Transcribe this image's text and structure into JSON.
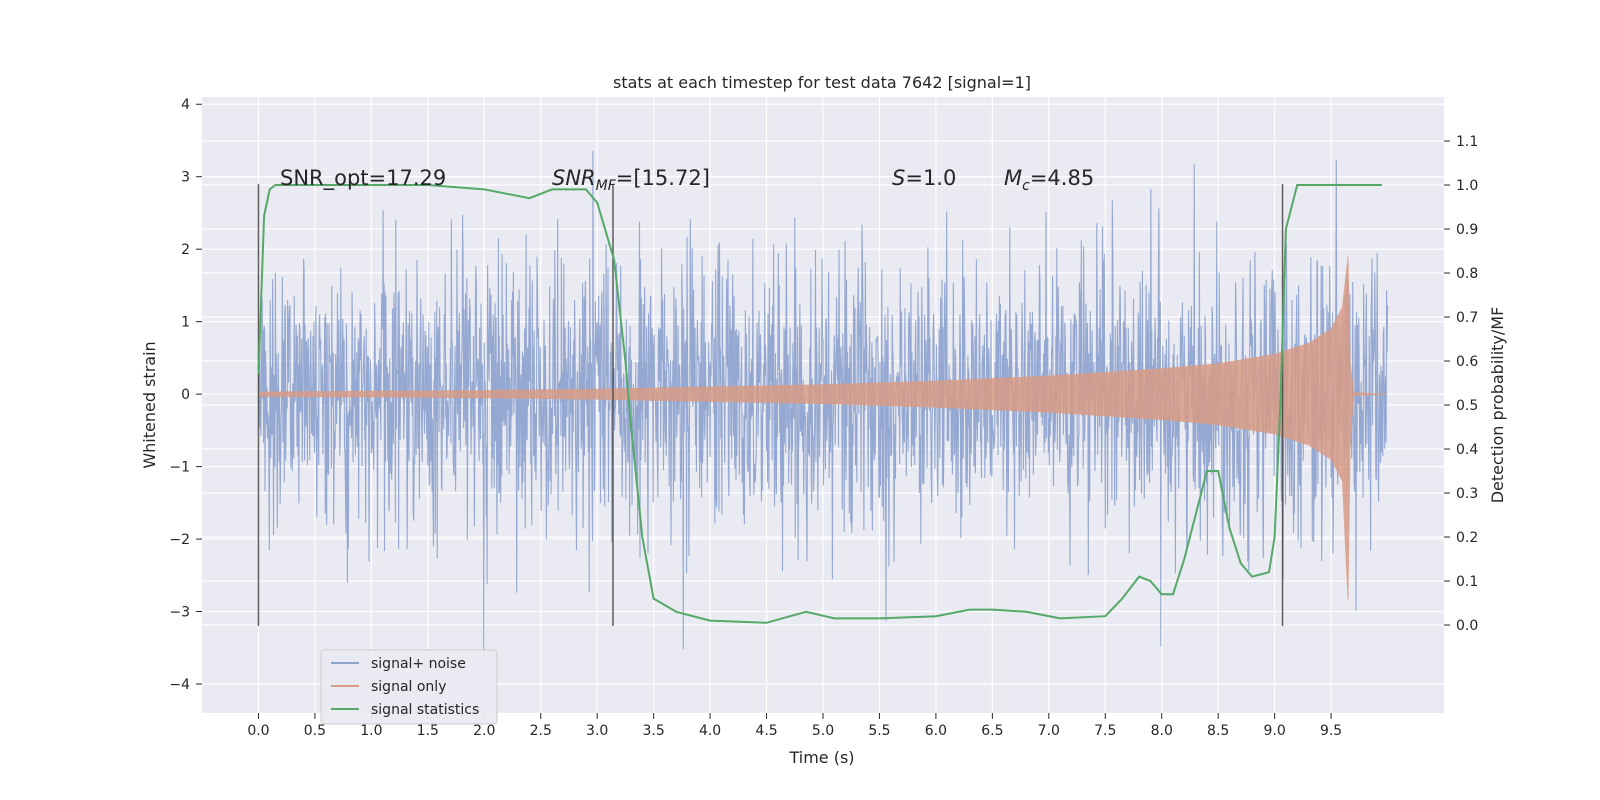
{
  "chart_data": {
    "type": "line",
    "title": "stats at each timestep for test data 7642 [signal=1]",
    "xlabel": "Time (s)",
    "ylabel": "Whitened strain",
    "ylabel_right": "Detection probability/MF",
    "xlim": [
      -0.5,
      10.5
    ],
    "ylim": [
      -4.4,
      4.1
    ],
    "ylim_right": [
      -0.2,
      1.2
    ],
    "x_ticks": [
      "0.0",
      "0.5",
      "1.0",
      "1.5",
      "2.0",
      "2.5",
      "3.0",
      "3.5",
      "4.0",
      "4.5",
      "5.0",
      "5.5",
      "6.0",
      "6.5",
      "7.0",
      "7.5",
      "8.0",
      "8.5",
      "9.0",
      "9.5"
    ],
    "y_ticks": [
      "−4",
      "−3",
      "−2",
      "−1",
      "0",
      "1",
      "2",
      "3",
      "4"
    ],
    "y_ticks_right": [
      "0.0",
      "0.1",
      "0.2",
      "0.3",
      "0.4",
      "0.5",
      "0.6",
      "0.7",
      "0.8",
      "0.9",
      "1.0",
      "1.1"
    ],
    "annotations": {
      "snr_opt": "SNR_opt=17.29",
      "snr_mf_base": "SNR",
      "snr_mf_sub": "MF",
      "snr_mf_rest": "=[15.72]",
      "s_var": "S",
      "s_rest": "=1.0",
      "mc_base": "M",
      "mc_sub": "c",
      "mc_rest": "=4.85"
    },
    "vertical_lines_x": [
      0.0,
      3.14,
      9.07
    ],
    "series": [
      {
        "name": "signal+ noise",
        "color": "#8fa4cf",
        "note": "noisy whitened strain, approx ±1.3 sigma with spikes to about ±3.7, x from 0 to 10"
      },
      {
        "name": "signal only",
        "color": "#d89c86",
        "envelope_x": [
          0.0,
          1.0,
          2.0,
          3.0,
          4.0,
          5.0,
          6.0,
          7.0,
          8.0,
          8.5,
          9.0,
          9.3,
          9.5,
          9.6,
          9.65,
          9.67,
          9.7,
          10.0
        ],
        "envelope_y": [
          0.03,
          0.04,
          0.05,
          0.07,
          0.1,
          0.13,
          0.18,
          0.25,
          0.35,
          0.42,
          0.55,
          0.7,
          0.9,
          1.2,
          1.9,
          0.4,
          0.02,
          0.0
        ]
      },
      {
        "name": "signal statistics",
        "color": "#55a868",
        "x": [
          0.0,
          0.05,
          0.1,
          0.15,
          0.25,
          0.5,
          1.0,
          1.5,
          2.0,
          2.2,
          2.4,
          2.6,
          2.9,
          3.0,
          3.15,
          3.25,
          3.3,
          3.4,
          3.5,
          3.7,
          4.0,
          4.5,
          4.85,
          5.1,
          5.5,
          6.0,
          6.3,
          6.5,
          6.8,
          7.1,
          7.5,
          7.65,
          7.8,
          7.9,
          8.0,
          8.1,
          8.2,
          8.3,
          8.4,
          8.5,
          8.6,
          8.7,
          8.8,
          8.95,
          9.0,
          9.05,
          9.1,
          9.2,
          9.5,
          9.95
        ],
        "y": [
          0.57,
          0.93,
          0.99,
          1.0,
          1.0,
          1.0,
          1.0,
          1.0,
          0.99,
          0.98,
          0.97,
          0.99,
          0.99,
          0.96,
          0.83,
          0.6,
          0.45,
          0.2,
          0.06,
          0.03,
          0.01,
          0.005,
          0.03,
          0.015,
          0.015,
          0.02,
          0.035,
          0.035,
          0.03,
          0.015,
          0.02,
          0.06,
          0.11,
          0.1,
          0.07,
          0.07,
          0.15,
          0.25,
          0.35,
          0.35,
          0.22,
          0.14,
          0.11,
          0.12,
          0.2,
          0.5,
          0.9,
          1.0,
          1.0,
          1.0
        ]
      }
    ],
    "legend": {
      "placement": "lower-left",
      "entries": [
        {
          "label": "signal+ noise",
          "color": "#8fa4cf"
        },
        {
          "label": "signal only",
          "color": "#d89c86"
        },
        {
          "label": "signal statistics",
          "color": "#55a868"
        }
      ]
    }
  }
}
